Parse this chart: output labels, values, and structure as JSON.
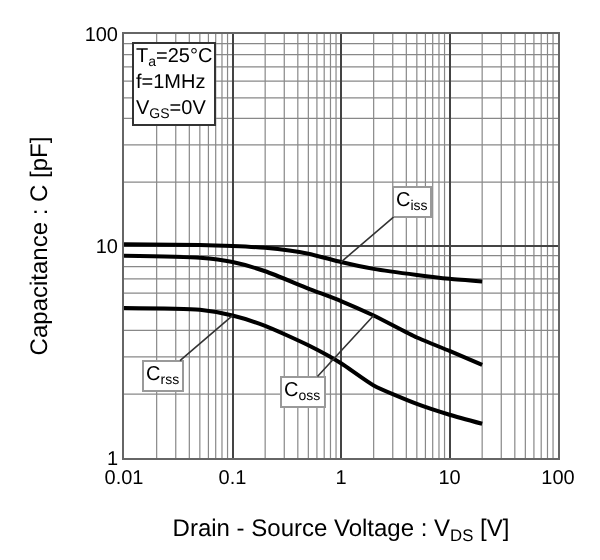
{
  "chart_data": {
    "type": "line",
    "xlabel": "Drain - Source Voltage : V$_{DS}$ [V]",
    "ylabel": "Capacitance : C [pF]",
    "log": "xy",
    "xlim": [
      0.01,
      100
    ],
    "ylim": [
      1,
      100
    ],
    "xticks": [
      0.01,
      0.1,
      1,
      10,
      100
    ],
    "yticks": [
      1,
      10,
      100
    ],
    "grid": true,
    "marker": "none",
    "line_style": "solid",
    "x": [
      0.01,
      0.05,
      0.1,
      0.2,
      0.5,
      1,
      2,
      5,
      10,
      20
    ],
    "series": [
      {
        "color": "#000000",
        "values": [
          10.2,
          10.1,
          10.0,
          9.8,
          9.2,
          8.4,
          7.8,
          7.3,
          7.0,
          6.8
        ]
      },
      {
        "color": "#000000",
        "values": [
          9.0,
          8.8,
          8.4,
          7.6,
          6.3,
          5.5,
          4.7,
          3.7,
          3.2,
          2.75
        ]
      },
      {
        "color": "#000000",
        "values": [
          5.1,
          5.0,
          4.7,
          4.2,
          3.4,
          2.8,
          2.2,
          1.8,
          1.6,
          1.45
        ]
      }
    ],
    "annotations": [
      "T$_{a}$=25°C\nf=1MHz\nV$_{GS}$=0V",
      {
        "text": "C$_{iss}$",
        "x": 1,
        "y": 8.4
      },
      {
        "text": "C$_{rss}$",
        "x": 0.1,
        "y": 4.7
      },
      {
        "text": "C$_{oss}$",
        "x": 2,
        "y": 4.7
      }
    ]
  }
}
